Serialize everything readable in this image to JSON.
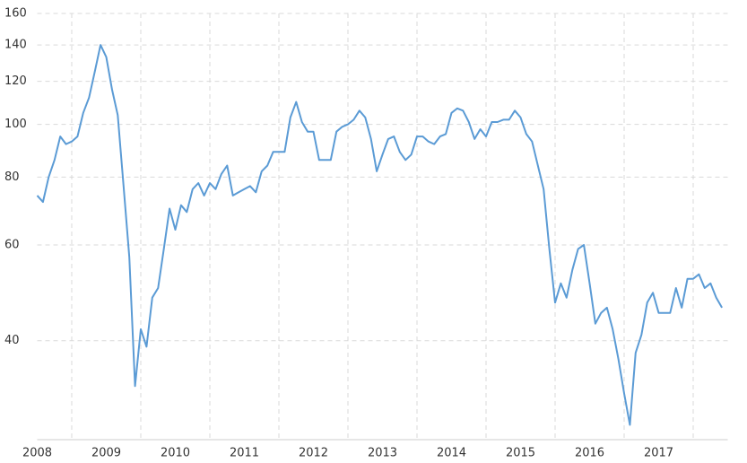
{
  "chart_data": {
    "type": "line",
    "log_y": true,
    "grid": true,
    "xlim": [
      "2007-07",
      "2017-07"
    ],
    "xticks": [
      2008,
      2009,
      2010,
      2011,
      2012,
      2013,
      2014,
      2015,
      2016,
      2017
    ],
    "ylim": [
      26.3,
      160
    ],
    "yticks": [
      40,
      60,
      80,
      100,
      120,
      140,
      160
    ],
    "x": [
      "2007-07",
      "2007-08",
      "2007-09",
      "2007-10",
      "2007-11",
      "2007-12",
      "2008-01",
      "2008-02",
      "2008-03",
      "2008-04",
      "2008-05",
      "2008-06",
      "2008-07",
      "2008-08",
      "2008-09",
      "2008-10",
      "2008-11",
      "2008-12",
      "2009-01",
      "2009-02",
      "2009-03",
      "2009-04",
      "2009-05",
      "2009-06",
      "2009-07",
      "2009-08",
      "2009-09",
      "2009-10",
      "2009-11",
      "2009-12",
      "2010-01",
      "2010-02",
      "2010-03",
      "2010-04",
      "2010-05",
      "2010-06",
      "2010-07",
      "2010-08",
      "2010-09",
      "2010-10",
      "2010-11",
      "2010-12",
      "2011-01",
      "2011-02",
      "2011-03",
      "2011-04",
      "2011-05",
      "2011-06",
      "2011-07",
      "2011-08",
      "2011-09",
      "2011-10",
      "2011-11",
      "2011-12",
      "2012-01",
      "2012-02",
      "2012-03",
      "2012-04",
      "2012-05",
      "2012-06",
      "2012-07",
      "2012-08",
      "2012-09",
      "2012-10",
      "2012-11",
      "2012-12",
      "2013-01",
      "2013-02",
      "2013-03",
      "2013-04",
      "2013-05",
      "2013-06",
      "2013-07",
      "2013-08",
      "2013-09",
      "2013-10",
      "2013-11",
      "2013-12",
      "2014-01",
      "2014-02",
      "2014-03",
      "2014-04",
      "2014-05",
      "2014-06",
      "2014-07",
      "2014-08",
      "2014-09",
      "2014-10",
      "2014-11",
      "2014-12",
      "2015-01",
      "2015-02",
      "2015-03",
      "2015-04",
      "2015-05",
      "2015-06",
      "2015-07",
      "2015-08",
      "2015-09",
      "2015-10",
      "2015-11",
      "2015-12",
      "2016-01",
      "2016-02",
      "2016-03",
      "2016-04",
      "2016-05",
      "2016-06",
      "2016-07",
      "2016-08",
      "2016-09",
      "2016-10",
      "2016-11",
      "2016-12",
      "2017-01",
      "2017-02",
      "2017-03",
      "2017-04",
      "2017-05",
      "2017-06"
    ],
    "series": [
      {
        "color": "#5b9bd5",
        "values": [
          74,
          72,
          80,
          86,
          95,
          92,
          93,
          95,
          105,
          112,
          125,
          140,
          133,
          116,
          104,
          77,
          57,
          33,
          42,
          39,
          48,
          50,
          59,
          70,
          64,
          71,
          69,
          76,
          78,
          74,
          78,
          76,
          81,
          84,
          74,
          75,
          76,
          77,
          75,
          82,
          84,
          89,
          89,
          89,
          103,
          110,
          101,
          97,
          97,
          86,
          86,
          86,
          97,
          99,
          100,
          102,
          106,
          103,
          94,
          82,
          88,
          94,
          95,
          89,
          86,
          88,
          95,
          95,
          93,
          92,
          95,
          96,
          105,
          107,
          106,
          101,
          94,
          98,
          95,
          101,
          101,
          102,
          102,
          106,
          103,
          96,
          93,
          84,
          76,
          59,
          47,
          51,
          48,
          54,
          59,
          60,
          51,
          43,
          45,
          46,
          42,
          37,
          32,
          28,
          38,
          41,
          47,
          49,
          45,
          45,
          45,
          50,
          46,
          52,
          52,
          53,
          50,
          51,
          48,
          46
        ]
      }
    ]
  }
}
